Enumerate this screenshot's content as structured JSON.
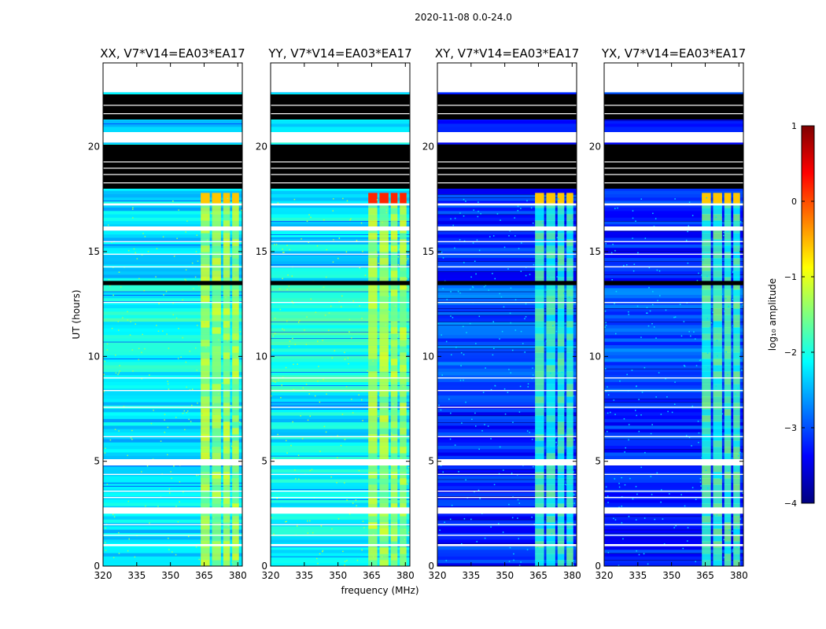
{
  "figure": {
    "suptitle": "2020-11-08 0.0-24.0"
  },
  "chart_data": {
    "type": "heatmap",
    "xlabel": "frequency (MHz)",
    "ylabel": "UT (hours)",
    "xlim": [
      320,
      382
    ],
    "ylim": [
      0,
      24
    ],
    "xticks": [
      320,
      335,
      350,
      365,
      380
    ],
    "yticks": [
      0,
      5,
      10,
      15,
      20
    ],
    "panels": [
      {
        "title": "XX, V7*V14=EA03*EA17",
        "base_level": -2.3,
        "rfi_level": -1.3,
        "flare_level": -0.6
      },
      {
        "title": "YY, V7*V14=EA03*EA17",
        "base_level": -2.2,
        "rfi_level": -1.3,
        "flare_level": 0.2
      },
      {
        "title": "XY, V7*V14=EA03*EA17",
        "base_level": -3.2,
        "rfi_level": -1.9,
        "flare_level": -0.6
      },
      {
        "title": "YX, V7*V14=EA03*EA17",
        "base_level": -3.2,
        "rfi_level": -1.8,
        "flare_level": -0.6
      }
    ],
    "rfi_bands_mhz": [
      [
        363.5,
        367.5
      ],
      [
        368.5,
        372.5
      ],
      [
        373.5,
        376.5
      ],
      [
        377.5,
        380.5
      ]
    ],
    "flagged_blank_hours": [
      [
        22.6,
        24.0
      ],
      [
        20.2,
        20.7
      ],
      [
        17.2,
        17.3
      ],
      [
        16.0,
        16.2
      ],
      [
        4.8,
        5.1
      ],
      [
        2.5,
        2.8
      ],
      [
        0.95,
        1.05
      ]
    ],
    "flagged_black_hours": [
      [
        21.3,
        22.5
      ],
      [
        18.0,
        20.1
      ],
      [
        13.4,
        13.6
      ]
    ],
    "colorbar": {
      "label": "log₁₀ amplitude",
      "range": [
        -4,
        1
      ],
      "ticks": [
        1,
        0,
        -1,
        -2,
        -3,
        -4
      ],
      "colormap": [
        "#00007f",
        "#0000ff",
        "#007fff",
        "#00ffff",
        "#7fff7f",
        "#ffff00",
        "#ff7f00",
        "#ff0000",
        "#7f0000"
      ]
    }
  }
}
